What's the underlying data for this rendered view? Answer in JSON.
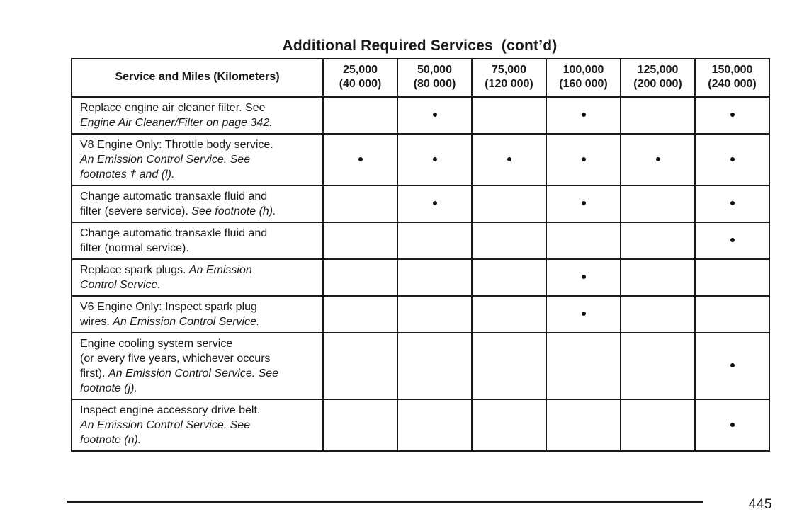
{
  "page": {
    "title": "Additional Required Services  (cont’d)",
    "page_number": "445"
  },
  "colors": {
    "text": "#1a1a1a",
    "border": "#1a1a1a",
    "background": "#ffffff",
    "dot": "#111111"
  },
  "table": {
    "service_header": "Service and Miles (Kilometers)",
    "mile_columns": [
      {
        "miles": "25,000",
        "km": "(40 000)"
      },
      {
        "miles": "50,000",
        "km": "(80 000)"
      },
      {
        "miles": "75,000",
        "km": "(120 000)"
      },
      {
        "miles": "100,000",
        "km": "(160 000)"
      },
      {
        "miles": "125,000",
        "km": "(200 000)"
      },
      {
        "miles": "150,000",
        "km": "(240 000)"
      }
    ],
    "rows": [
      {
        "service_segments": [
          {
            "text": "Replace engine air cleaner filter. See",
            "italic": false
          },
          {
            "text": "Engine Air Cleaner/Filter on page 342.",
            "italic": true,
            "break_before": true
          }
        ],
        "marks": [
          false,
          true,
          false,
          true,
          false,
          true
        ]
      },
      {
        "service_segments": [
          {
            "text": "V8 Engine Only: Throttle body service.",
            "italic": false
          },
          {
            "text": "An Emission Control Service. See",
            "italic": true,
            "break_before": true
          },
          {
            "text": "footnotes † and (l).",
            "italic": true,
            "break_before": true
          }
        ],
        "marks": [
          true,
          true,
          true,
          true,
          true,
          true
        ]
      },
      {
        "service_segments": [
          {
            "text": "Change automatic transaxle fluid and",
            "italic": false
          },
          {
            "text": "filter (severe service). ",
            "italic": false,
            "break_before": true
          },
          {
            "text": "See footnote (h).",
            "italic": true
          }
        ],
        "marks": [
          false,
          true,
          false,
          true,
          false,
          true
        ]
      },
      {
        "service_segments": [
          {
            "text": "Change automatic transaxle fluid and",
            "italic": false
          },
          {
            "text": "filter (normal service).",
            "italic": false,
            "break_before": true
          }
        ],
        "marks": [
          false,
          false,
          false,
          false,
          false,
          true
        ]
      },
      {
        "service_segments": [
          {
            "text": "Replace spark plugs. ",
            "italic": false
          },
          {
            "text": "An Emission",
            "italic": true
          },
          {
            "text": "Control Service.",
            "italic": true,
            "break_before": true
          }
        ],
        "marks": [
          false,
          false,
          false,
          true,
          false,
          false
        ]
      },
      {
        "service_segments": [
          {
            "text": "V6 Engine Only: Inspect spark plug",
            "italic": false
          },
          {
            "text": "wires. ",
            "italic": false,
            "break_before": true
          },
          {
            "text": "An Emission Control Service.",
            "italic": true
          }
        ],
        "marks": [
          false,
          false,
          false,
          true,
          false,
          false
        ]
      },
      {
        "service_segments": [
          {
            "text": "Engine cooling system service",
            "italic": false
          },
          {
            "text": "(or every five years, whichever occurs",
            "italic": false,
            "break_before": true
          },
          {
            "text": "first). ",
            "italic": false,
            "break_before": true
          },
          {
            "text": "An Emission Control Service. See",
            "italic": true
          },
          {
            "text": "footnote (j).",
            "italic": true,
            "break_before": true
          }
        ],
        "marks": [
          false,
          false,
          false,
          false,
          false,
          true
        ]
      },
      {
        "service_segments": [
          {
            "text": "Inspect engine accessory drive belt.",
            "italic": false
          },
          {
            "text": "An Emission Control Service. See",
            "italic": true,
            "break_before": true
          },
          {
            "text": "footnote (n).",
            "italic": true,
            "break_before": true
          }
        ],
        "marks": [
          false,
          false,
          false,
          false,
          false,
          true
        ]
      }
    ]
  }
}
